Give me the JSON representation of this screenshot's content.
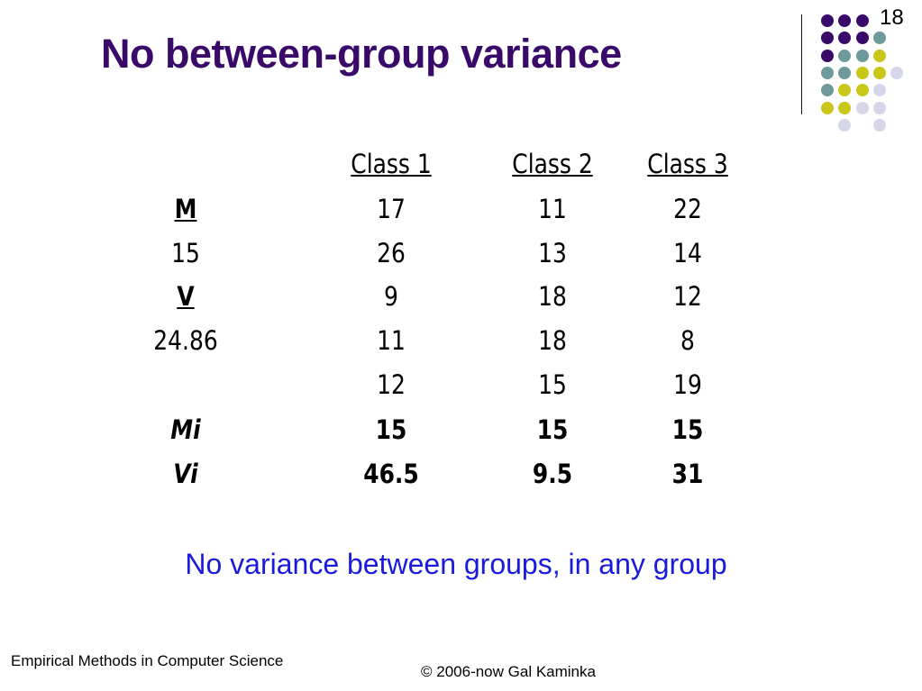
{
  "slide": {
    "title": "No between-group variance",
    "number": "18",
    "note": "No variance between groups, in any group"
  },
  "table": {
    "headers": [
      "Class 1",
      "Class 2",
      " Class 3"
    ],
    "left_column": [
      "M",
      "15",
      "V",
      "24.86"
    ],
    "rows": [
      [
        "17",
        "11",
        "22"
      ],
      [
        "26",
        "13",
        "14"
      ],
      [
        "9",
        "18",
        "12"
      ],
      [
        "11",
        "18",
        "8"
      ],
      [
        "12",
        "15",
        "19"
      ]
    ],
    "mi_label": "Mi",
    "mi": [
      "15",
      "15",
      "15"
    ],
    "vi_label": "Vi",
    "vi": [
      "46.5",
      "9.5",
      "31"
    ]
  },
  "footer": {
    "left": "Empirical Methods in Computer Science",
    "right": "© 2006-now  Gal Kaminka"
  },
  "colors": {
    "title": "#3a0a6a",
    "note": "#1a1adc",
    "dot_purple": "#3a0a6a",
    "dot_teal": "#6f9a9c",
    "dot_yellow": "#c9c81a",
    "dot_lavender": "#d6d6ea"
  }
}
